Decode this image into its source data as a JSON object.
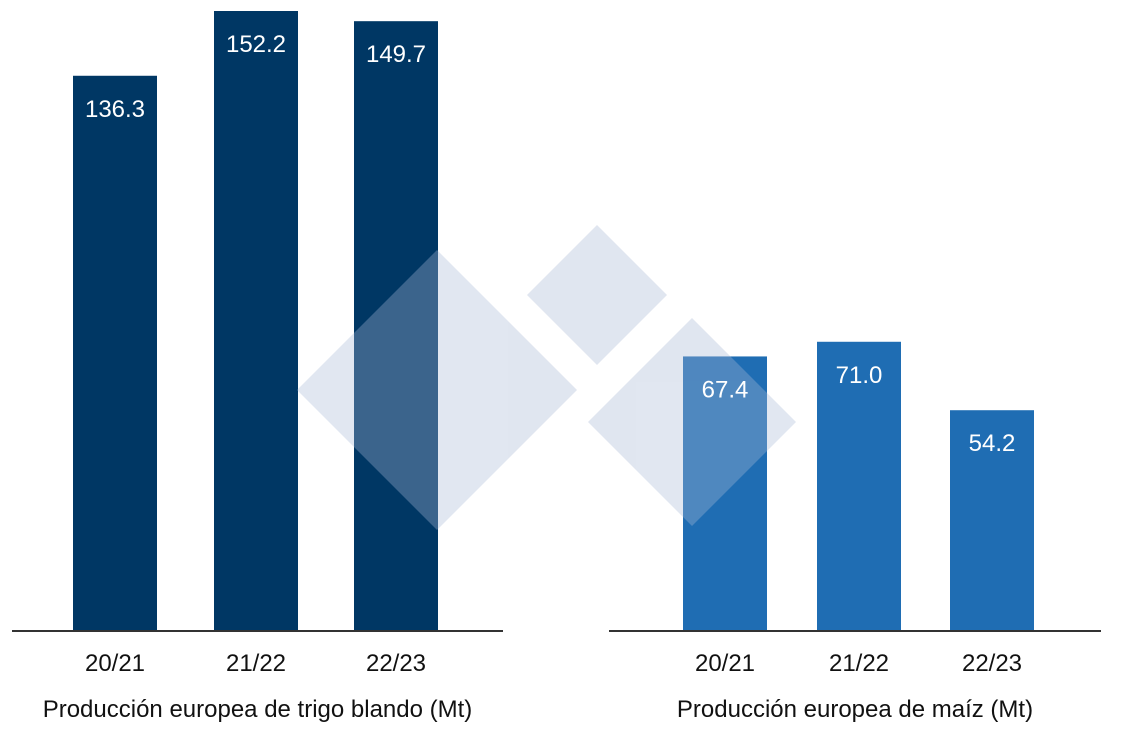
{
  "chart_data": [
    {
      "type": "bar",
      "title": "Producción europea de trigo blando (Mt)",
      "categories": [
        "20/21",
        "21/22",
        "22/23"
      ],
      "values": [
        136.3,
        152.2,
        149.7
      ],
      "value_labels": [
        "136.3",
        "152.2",
        "149.7"
      ],
      "color": "#003764"
    },
    {
      "type": "bar",
      "title": "Producción europea de maíz (Mt)",
      "categories": [
        "20/21",
        "21/22",
        "22/23"
      ],
      "values": [
        67.4,
        71.0,
        54.2
      ],
      "value_labels": [
        "67.4",
        "71.0",
        "54.2"
      ],
      "color": "#1f6db3"
    }
  ]
}
